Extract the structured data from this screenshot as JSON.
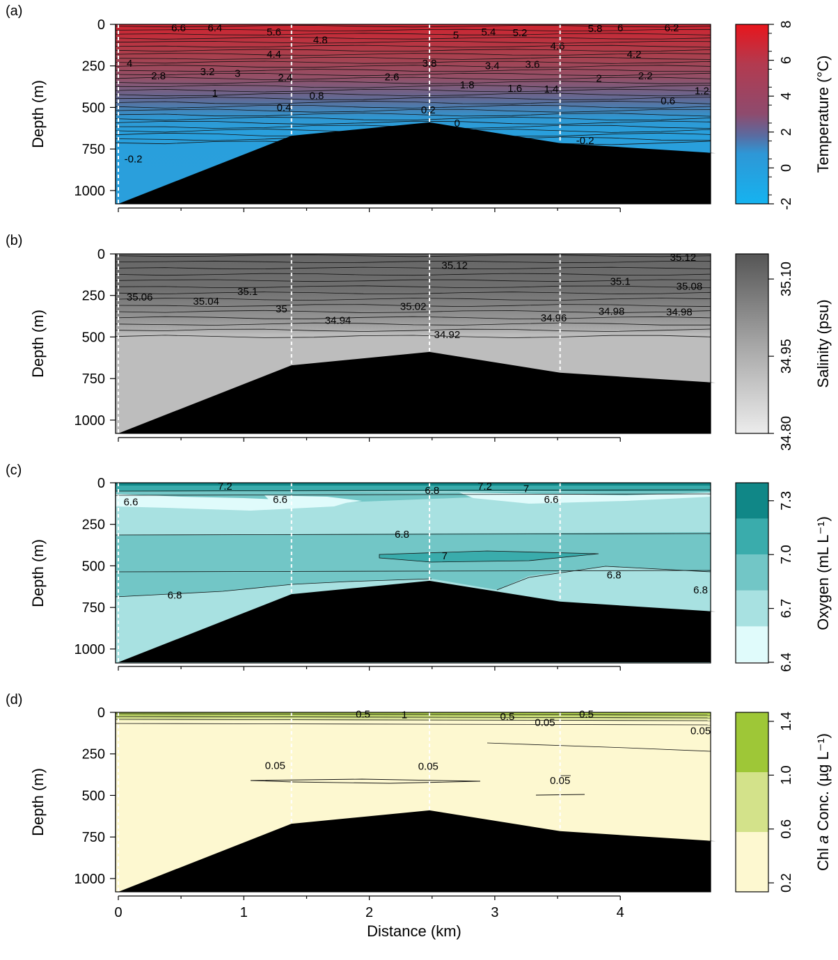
{
  "chart_data": [
    {
      "type": "heatmap",
      "panel_label": "(a)",
      "variable": "temperature",
      "ylabel": "Depth (m)",
      "colorbar_label": "Temperature (°C)",
      "colorbar_ticks": [
        "8",
        "6",
        "4",
        "2",
        "0",
        "-2"
      ],
      "colorbar_range": [
        -2,
        8
      ],
      "colors": {
        "top": "#e8151c",
        "middle": "#8e4b6e",
        "bottom": "#15b3f0"
      },
      "x_ticks": [
        0,
        1,
        2,
        3,
        4
      ],
      "y_ticks": [
        "0",
        "250",
        "500",
        "750",
        "1000"
      ],
      "xlim": [
        0,
        4.8
      ],
      "ylim": [
        0,
        1080
      ],
      "stations_km": [
        0,
        1.38,
        2.48,
        3.52,
        4.76
      ],
      "seafloor_depth_m": [
        1080,
        670,
        590,
        715,
        775
      ],
      "contour_labels": [
        {
          "text": "6.6",
          "x": 0.48,
          "depth": 20
        },
        {
          "text": "6.4",
          "x": 0.77,
          "depth": 20
        },
        {
          "text": "5.6",
          "x": 1.24,
          "depth": 45
        },
        {
          "text": "4.8",
          "x": 1.61,
          "depth": 95
        },
        {
          "text": "5",
          "x": 2.69,
          "depth": 65
        },
        {
          "text": "5.4",
          "x": 2.95,
          "depth": 45
        },
        {
          "text": "5.2",
          "x": 3.2,
          "depth": 50
        },
        {
          "text": "5.8",
          "x": 3.8,
          "depth": 25
        },
        {
          "text": "6",
          "x": 4.0,
          "depth": 20
        },
        {
          "text": "6.2",
          "x": 4.41,
          "depth": 20
        },
        {
          "text": "4.6",
          "x": 3.5,
          "depth": 130
        },
        {
          "text": "4.4",
          "x": 1.24,
          "depth": 180
        },
        {
          "text": "4.2",
          "x": 4.11,
          "depth": 180
        },
        {
          "text": "4",
          "x": 0.09,
          "depth": 235
        },
        {
          "text": "3.8",
          "x": 2.48,
          "depth": 235
        },
        {
          "text": "3.4",
          "x": 2.98,
          "depth": 250
        },
        {
          "text": "3.6",
          "x": 3.3,
          "depth": 240
        },
        {
          "text": "2.8",
          "x": 0.32,
          "depth": 310
        },
        {
          "text": "3.2",
          "x": 0.71,
          "depth": 285
        },
        {
          "text": "3",
          "x": 0.95,
          "depth": 295
        },
        {
          "text": "2.4",
          "x": 1.33,
          "depth": 320
        },
        {
          "text": "2.6",
          "x": 2.18,
          "depth": 315
        },
        {
          "text": "2",
          "x": 3.83,
          "depth": 325
        },
        {
          "text": "2.2",
          "x": 4.2,
          "depth": 310
        },
        {
          "text": "1.8",
          "x": 2.78,
          "depth": 365
        },
        {
          "text": "1.6",
          "x": 3.16,
          "depth": 385
        },
        {
          "text": "1.4",
          "x": 3.45,
          "depth": 390
        },
        {
          "text": "1.2",
          "x": 4.65,
          "depth": 400
        },
        {
          "text": "1",
          "x": 0.77,
          "depth": 415
        },
        {
          "text": "0.8",
          "x": 1.58,
          "depth": 430
        },
        {
          "text": "0.6",
          "x": 4.38,
          "depth": 460
        },
        {
          "text": "0.4",
          "x": 1.32,
          "depth": 500
        },
        {
          "text": "0.2",
          "x": 2.47,
          "depth": 515
        },
        {
          "text": "0",
          "x": 2.7,
          "depth": 595
        },
        {
          "text": "-0.2",
          "x": 3.72,
          "depth": 700
        },
        {
          "text": "-0.2",
          "x": 0.12,
          "depth": 810
        }
      ]
    },
    {
      "type": "heatmap",
      "panel_label": "(b)",
      "variable": "salinity",
      "ylabel": "Depth (m)",
      "colorbar_label": "Salinity (psu)",
      "colorbar_ticks": [
        "35.10",
        "34.95",
        "34.80"
      ],
      "colorbar_range": [
        34.8,
        35.14
      ],
      "colors": {
        "top": "#555555",
        "bottom": "#ececec",
        "deep_fill": "#bcbcbc"
      },
      "x_ticks": [
        0,
        1,
        2,
        3,
        4
      ],
      "y_ticks": [
        "0",
        "250",
        "500",
        "750",
        "1000"
      ],
      "xlim": [
        0,
        4.8
      ],
      "ylim": [
        0,
        1080
      ],
      "stations_km": [
        0,
        1.38,
        2.48,
        3.52,
        4.76
      ],
      "seafloor_depth_m": [
        1080,
        670,
        590,
        715,
        775
      ],
      "contour_labels": [
        {
          "text": "35.12",
          "x": 2.68,
          "depth": 70
        },
        {
          "text": "35.12",
          "x": 4.5,
          "depth": 20
        },
        {
          "text": "35.1",
          "x": 1.03,
          "depth": 225
        },
        {
          "text": "35.1",
          "x": 4.0,
          "depth": 165
        },
        {
          "text": "35.08",
          "x": 4.55,
          "depth": 195
        },
        {
          "text": "35.06",
          "x": 0.17,
          "depth": 260
        },
        {
          "text": "35.04",
          "x": 0.7,
          "depth": 285
        },
        {
          "text": "35",
          "x": 1.3,
          "depth": 330
        },
        {
          "text": "35.02",
          "x": 2.35,
          "depth": 315
        },
        {
          "text": "34.98",
          "x": 3.93,
          "depth": 345
        },
        {
          "text": "34.98",
          "x": 4.47,
          "depth": 350
        },
        {
          "text": "34.96",
          "x": 3.47,
          "depth": 385
        },
        {
          "text": "34.94",
          "x": 1.75,
          "depth": 400
        },
        {
          "text": "34.92",
          "x": 2.62,
          "depth": 485
        }
      ]
    },
    {
      "type": "heatmap",
      "panel_label": "(c)",
      "variable": "oxygen",
      "ylabel": "Depth (m)",
      "colorbar_label": "Oxygen (mL L⁻¹)",
      "colorbar_ticks": [
        "7.3",
        "7.0",
        "6.7",
        "6.4"
      ],
      "colorbar_bands": [
        "#e0fbfb",
        "#a8e1e1",
        "#72c6c6",
        "#3aacac",
        "#108787"
      ],
      "x_ticks": [
        0,
        1,
        2,
        3,
        4
      ],
      "y_ticks": [
        "0",
        "250",
        "500",
        "750",
        "1000"
      ],
      "xlim": [
        0,
        4.8
      ],
      "ylim": [
        0,
        1080
      ],
      "stations_km": [
        0,
        1.38,
        2.48,
        3.52,
        4.76
      ],
      "seafloor_depth_m": [
        1080,
        670,
        590,
        715,
        775
      ],
      "contour_labels": [
        {
          "text": "7.2",
          "x": 0.85,
          "depth": 20
        },
        {
          "text": "7.2",
          "x": 2.92,
          "depth": 20
        },
        {
          "text": "7",
          "x": 3.25,
          "depth": 35
        },
        {
          "text": "6.8",
          "x": 2.5,
          "depth": 45
        },
        {
          "text": "6.6",
          "x": 0.1,
          "depth": 115
        },
        {
          "text": "6.6",
          "x": 1.29,
          "depth": 100
        },
        {
          "text": "6.6",
          "x": 3.45,
          "depth": 100
        },
        {
          "text": "6.8",
          "x": 2.26,
          "depth": 310
        },
        {
          "text": "7",
          "x": 2.6,
          "depth": 440
        },
        {
          "text": "6.8",
          "x": 3.95,
          "depth": 555
        },
        {
          "text": "6.8",
          "x": 4.64,
          "depth": 645
        },
        {
          "text": "6.8",
          "x": 0.45,
          "depth": 675
        }
      ]
    },
    {
      "type": "heatmap",
      "panel_label": "(d)",
      "variable": "chlorophyll",
      "ylabel": "Depth (m)",
      "xlabel": "Distance (km)",
      "colorbar_label_pre": "Chl ",
      "colorbar_label_italic": "a",
      "colorbar_label_post": " Conc. (µg L⁻¹)",
      "colorbar_ticks": [
        "1.4",
        "1.0",
        "0.6",
        "0.2"
      ],
      "colorbar_bands": [
        "#fdf8d0",
        "#d3e28a",
        "#9ec737"
      ],
      "x_ticks": [
        0,
        1,
        2,
        3,
        4
      ],
      "x_tick_labels": [
        "0",
        "1",
        "2",
        "3",
        "4"
      ],
      "y_ticks": [
        "0",
        "250",
        "500",
        "750",
        "1000"
      ],
      "xlim": [
        0,
        4.8
      ],
      "ylim": [
        0,
        1080
      ],
      "stations_km": [
        0,
        1.38,
        2.48,
        3.52,
        4.76
      ],
      "seafloor_depth_m": [
        1080,
        670,
        590,
        715,
        775
      ],
      "contour_labels": [
        {
          "text": "0.5",
          "x": 1.95,
          "depth": 10
        },
        {
          "text": "1",
          "x": 2.28,
          "depth": 15
        },
        {
          "text": "0.5",
          "x": 3.1,
          "depth": 25
        },
        {
          "text": "0.05",
          "x": 3.4,
          "depth": 60
        },
        {
          "text": "0.5",
          "x": 3.73,
          "depth": 10
        },
        {
          "text": "0.05",
          "x": 4.64,
          "depth": 110
        },
        {
          "text": "0.05",
          "x": 1.25,
          "depth": 320
        },
        {
          "text": "0.05",
          "x": 2.47,
          "depth": 325
        },
        {
          "text": "0.05",
          "x": 3.52,
          "depth": 410
        }
      ]
    }
  ]
}
